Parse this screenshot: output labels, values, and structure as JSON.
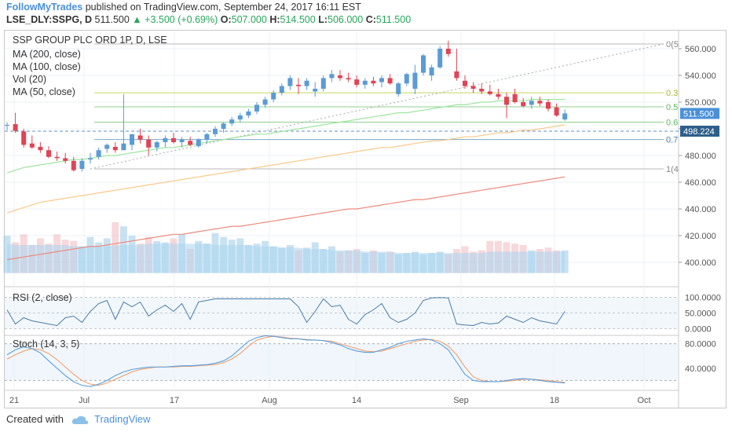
{
  "header": {
    "author": "FollowMyTrades",
    "published_text": "published on TradingView.com, September 24, 2017 16:11 EST",
    "symbol": "LSE_DLY:SSPG, D",
    "last": "511.500",
    "change": "+3.500 (+0.69%)",
    "o_label": "O:",
    "o": "507.000",
    "h_label": "H:",
    "h": "514.500",
    "l_label": "L:",
    "l": "506.000",
    "c_label": "C:",
    "c": "511.500"
  },
  "footer": {
    "created_with": "Created with",
    "brand": "TradingView"
  },
  "colors": {
    "up": "#5b9bd5",
    "down": "#e04455",
    "ma200": "#ef8a7c",
    "ma100": "#f8c98a",
    "ma50": "#9ee59e",
    "volume": "#a9d6ee",
    "rsi": "#4a7ca8",
    "stoch_k": "#5aa0e0",
    "stoch_d": "#f0a070"
  },
  "chart_data": [
    {
      "type": "candlestick",
      "title": "SSP GROUP PLC ORD 1P, D, LSE",
      "legend": [
        "MA (200, close)",
        "MA (100, close)",
        "Vol (20)",
        "MA (50, close)"
      ],
      "x_ticks": [
        "21",
        "Jul",
        "17",
        "Aug",
        "14",
        "Sep",
        "18",
        "Oct"
      ],
      "y_ticks": [
        "560.000",
        "540.000",
        "520.000",
        "500.000",
        "480.000",
        "460.000",
        "440.000",
        "420.000",
        "400.000"
      ],
      "ylim": [
        392,
        566
      ],
      "price_labels": {
        "last": "511.500",
        "marker": "498.224"
      },
      "fib_levels": [
        {
          "label": "0(5",
          "value": 563.5
        },
        {
          "label": "0.3",
          "value": 527
        },
        {
          "label": "0.5",
          "value": 516.5
        },
        {
          "label": "0.6",
          "value": 505
        },
        {
          "label": "0.7",
          "value": 492
        },
        {
          "label": "1(4",
          "value": 470
        }
      ],
      "candles": [
        [
          502.5,
          505,
          499,
          503
        ],
        [
          503.5,
          512,
          497,
          498.5
        ],
        [
          498,
          500,
          486,
          488
        ],
        [
          489,
          495,
          485,
          486
        ],
        [
          486.5,
          490,
          482,
          484
        ],
        [
          484,
          487,
          478,
          479
        ],
        [
          479,
          483,
          476,
          478
        ],
        [
          478,
          482,
          474,
          476
        ],
        [
          476,
          479,
          468,
          469
        ],
        [
          470,
          478,
          468,
          476
        ],
        [
          477,
          482,
          474,
          478
        ],
        [
          479,
          486,
          477,
          484
        ],
        [
          485,
          489,
          482,
          488
        ],
        [
          486.5,
          490,
          482,
          484
        ],
        [
          484,
          526,
          485,
          489
        ],
        [
          488,
          496,
          484,
          496
        ],
        [
          495,
          500,
          489,
          492
        ],
        [
          492,
          495,
          480,
          486
        ],
        [
          486,
          491,
          483,
          490
        ],
        [
          490,
          495,
          486,
          493
        ],
        [
          493,
          497,
          489,
          490
        ],
        [
          490,
          494,
          486,
          492
        ],
        [
          491,
          494,
          487,
          488
        ],
        [
          487,
          493,
          486,
          492
        ],
        [
          492,
          497,
          489,
          496
        ],
        [
          496,
          502,
          494,
          500
        ],
        [
          500,
          505,
          497,
          504
        ],
        [
          504,
          509,
          502,
          507
        ],
        [
          507,
          512,
          505,
          510
        ],
        [
          510,
          515,
          508,
          513
        ],
        [
          513,
          520,
          511,
          518
        ],
        [
          518,
          524,
          516,
          522
        ],
        [
          522,
          529,
          520,
          527
        ],
        [
          527,
          534,
          525,
          532
        ],
        [
          532,
          540,
          529,
          538
        ],
        [
          533,
          538,
          526,
          532
        ],
        [
          532,
          538,
          529,
          536
        ],
        [
          528,
          535,
          524,
          530
        ],
        [
          530,
          540,
          528,
          538
        ],
        [
          538,
          544,
          535,
          541
        ],
        [
          540,
          544,
          536,
          538
        ],
        [
          538,
          542,
          535,
          537
        ],
        [
          537,
          540,
          531,
          533
        ],
        [
          533,
          538,
          530,
          536
        ],
        [
          536,
          539,
          532,
          534
        ],
        [
          535,
          540,
          531,
          538
        ],
        [
          538,
          541,
          533,
          534
        ],
        [
          526,
          535,
          524,
          534
        ],
        [
          534,
          542,
          532,
          541
        ],
        [
          530,
          548,
          526,
          542
        ],
        [
          542,
          556,
          540,
          555
        ],
        [
          540,
          548,
          536,
          546
        ],
        [
          546,
          562,
          545,
          560
        ],
        [
          560,
          566,
          554,
          556
        ],
        [
          543,
          560,
          536,
          538
        ],
        [
          536,
          540,
          530,
          532
        ],
        [
          532,
          535,
          527,
          530
        ],
        [
          530,
          534,
          526,
          528
        ],
        [
          528,
          533,
          525,
          526
        ],
        [
          526,
          530,
          522,
          524
        ],
        [
          524,
          527,
          508,
          518
        ],
        [
          526,
          530,
          519,
          520
        ],
        [
          520,
          523,
          516,
          517
        ],
        [
          518,
          524,
          515,
          521
        ],
        [
          521,
          524,
          517,
          519
        ],
        [
          520,
          522,
          513,
          515
        ],
        [
          516,
          519,
          509,
          510
        ],
        [
          507,
          514.5,
          506,
          511.5
        ]
      ],
      "volume": [
        420,
        415,
        421,
        413,
        418,
        414,
        421,
        417,
        416,
        412,
        419,
        415,
        418,
        430,
        427,
        420,
        414,
        419,
        416,
        415,
        418,
        421,
        410,
        416,
        414,
        422,
        419,
        417,
        418,
        413,
        414,
        416,
        412,
        411,
        413,
        409,
        411,
        415,
        410,
        412,
        408,
        409,
        410,
        407,
        409,
        407,
        408,
        406,
        407,
        408,
        406,
        407,
        408,
        406,
        410,
        412,
        408,
        409,
        416,
        416,
        415,
        414,
        413,
        409,
        410,
        411,
        409,
        409
      ],
      "ma_volume": [
        414,
        413,
        413,
        413,
        413,
        413,
        413,
        413,
        412,
        412,
        412,
        412,
        412,
        413,
        413,
        413,
        413,
        414,
        414,
        414,
        414,
        414,
        414,
        414,
        414,
        413,
        413,
        413,
        413,
        413,
        412,
        412,
        412,
        411,
        411,
        411,
        410,
        410,
        410,
        409,
        409,
        409,
        409,
        408,
        408,
        408,
        408,
        407,
        407,
        407,
        407,
        407,
        407,
        407,
        407,
        407,
        407,
        407,
        408,
        408,
        408,
        408,
        408,
        408,
        408,
        408,
        408,
        408
      ],
      "ma50": [
        467,
        469,
        471,
        472,
        473,
        474,
        475,
        476,
        477,
        477,
        478,
        479,
        480,
        480,
        481,
        482,
        483,
        484,
        485,
        486,
        486,
        487,
        488,
        489,
        490,
        491,
        492,
        493,
        494,
        495,
        496,
        496,
        497,
        498,
        499,
        500,
        501,
        502,
        503,
        504,
        505,
        506,
        507,
        508,
        509,
        510,
        511,
        512,
        512,
        513,
        514,
        515,
        516,
        517,
        518,
        518,
        519,
        520,
        520,
        521,
        521,
        521,
        521,
        522,
        522,
        522,
        522,
        522
      ],
      "ma100": [
        437,
        439,
        441,
        443,
        445,
        446,
        447,
        448,
        449,
        450,
        451,
        452,
        453,
        454,
        455,
        456,
        457,
        458,
        459,
        460,
        461,
        462,
        463,
        464,
        465,
        466,
        467,
        468,
        469,
        470,
        471,
        472,
        473,
        474,
        475,
        476,
        477,
        478,
        479,
        480,
        481,
        482,
        483,
        484,
        485,
        486,
        486,
        487,
        488,
        489,
        490,
        491,
        491,
        492,
        493,
        494,
        494,
        495,
        496,
        497,
        497,
        498,
        499,
        499,
        500,
        501,
        502,
        503
      ],
      "ma200": [
        402,
        403,
        404,
        405,
        406,
        407,
        408,
        409,
        410,
        411,
        412,
        412,
        413,
        414,
        415,
        416,
        417,
        418,
        419,
        420,
        421,
        421,
        422,
        423,
        424,
        425,
        426,
        427,
        427,
        428,
        429,
        430,
        431,
        432,
        433,
        434,
        435,
        436,
        437,
        438,
        439,
        440,
        440,
        441,
        442,
        443,
        444,
        445,
        446,
        447,
        447,
        448,
        449,
        450,
        451,
        452,
        453,
        454,
        455,
        456,
        457,
        458,
        459,
        460,
        461,
        462,
        463,
        464
      ]
    },
    {
      "type": "line",
      "title": "RSI (2, close)",
      "y_ticks": [
        "100.0000",
        "50.0000",
        "0.0000"
      ],
      "ylim": [
        0,
        100
      ],
      "values": [
        60,
        15,
        35,
        25,
        20,
        15,
        10,
        35,
        40,
        20,
        55,
        80,
        90,
        30,
        85,
        70,
        85,
        40,
        60,
        75,
        55,
        80,
        30,
        85,
        90,
        95,
        95,
        95,
        95,
        95,
        95,
        95,
        95,
        95,
        95,
        70,
        20,
        55,
        95,
        70,
        75,
        30,
        15,
        45,
        60,
        80,
        35,
        20,
        30,
        50,
        90,
        98,
        99,
        98,
        15,
        12,
        10,
        20,
        15,
        18,
        40,
        30,
        20,
        35,
        25,
        20,
        15,
        55
      ]
    },
    {
      "type": "line",
      "title": "Stoch (14, 3, 5)",
      "y_ticks": [
        "80.0000",
        "40.0000"
      ],
      "ylim": [
        0,
        100
      ],
      "bands": [
        80,
        20
      ],
      "series": [
        {
          "name": "K",
          "values": [
            62,
            70,
            75,
            72,
            65,
            52,
            40,
            28,
            18,
            12,
            10,
            14,
            20,
            28,
            34,
            38,
            40,
            42,
            42,
            42,
            43,
            44,
            44,
            45,
            46,
            48,
            52,
            60,
            72,
            84,
            90,
            93,
            92,
            90,
            88,
            88,
            86,
            86,
            85,
            82,
            78,
            72,
            68,
            66,
            66,
            70,
            74,
            80,
            84,
            86,
            88,
            86,
            80,
            70,
            50,
            30,
            20,
            18,
            18,
            18,
            20,
            22,
            23,
            22,
            20,
            18,
            17,
            16
          ]
        },
        {
          "name": "D",
          "values": [
            55,
            62,
            68,
            72,
            70,
            64,
            54,
            42,
            30,
            20,
            14,
            12,
            16,
            22,
            28,
            34,
            38,
            40,
            42,
            42,
            42,
            43,
            43,
            44,
            45,
            46,
            49,
            55,
            64,
            76,
            86,
            90,
            92,
            91,
            89,
            88,
            87,
            86,
            85,
            84,
            80,
            76,
            72,
            68,
            67,
            68,
            72,
            76,
            80,
            84,
            86,
            87,
            84,
            76,
            62,
            42,
            26,
            20,
            18,
            18,
            19,
            20,
            22,
            22,
            21,
            20,
            18,
            17
          ]
        }
      ]
    }
  ]
}
